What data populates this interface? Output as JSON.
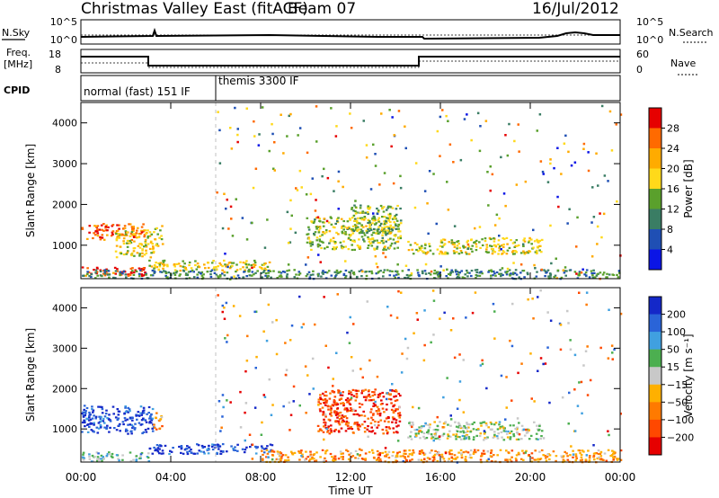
{
  "header": {
    "title": "Christmas Valley East (fitACF)",
    "beam": "Beam 07",
    "date": "16/Jul/2012"
  },
  "nsky_panel": {
    "left_label": "N.Sky",
    "right_label": "N.Search",
    "left_ticks": [
      "10^5",
      "10^0"
    ],
    "right_ticks": [
      "10^5",
      "10^0"
    ]
  },
  "freq_panel": {
    "left_label_line1": "Freq.",
    "left_label_line2": "[MHz]",
    "right_label": "Nave",
    "left_ticks": [
      "18",
      "8"
    ],
    "right_ticks": [
      "60",
      "0"
    ]
  },
  "cpid_panel": {
    "label": "CPID",
    "modes": [
      "normal (fast) 151 IF",
      "themis 3300 IF"
    ]
  },
  "time_axis": {
    "label": "Time UT",
    "ticks": [
      "00:00",
      "04:00",
      "08:00",
      "12:00",
      "16:00",
      "20:00",
      "00:00"
    ]
  },
  "range_axis": {
    "label": "Slant Range [km]",
    "ticks": [
      "1000",
      "2000",
      "3000",
      "4000"
    ]
  },
  "chart_data": [
    {
      "type": "heatmap",
      "title": "",
      "xlabel": "Time UT",
      "ylabel": "Slant Range [km]",
      "x_range_hours": [
        0,
        24
      ],
      "ylim": [
        180,
        4500
      ],
      "colorbar": {
        "label": "Power [dB]",
        "ticks": [
          "28",
          "24",
          "20",
          "16",
          "12",
          "8",
          "4"
        ],
        "colors": [
          "#e60000",
          "#ff6a00",
          "#ffab00",
          "#ffd91a",
          "#5aa02c",
          "#3a7d64",
          "#1f4fb4",
          "#0b15e6"
        ]
      },
      "regions": [
        {
          "t": [
            0.0,
            2.8
          ],
          "r": [
            1150,
            1550
          ],
          "level": 0.85
        },
        {
          "t": [
            1.5,
            3.2
          ],
          "r": [
            700,
            1400
          ],
          "level": 0.6
        },
        {
          "t": [
            3.2,
            3.6
          ],
          "r": [
            1000,
            1500
          ],
          "level": 0.55
        },
        {
          "t": [
            0.0,
            3.0
          ],
          "r": [
            250,
            480
          ],
          "level": 0.95
        },
        {
          "t": [
            3.0,
            8.5
          ],
          "r": [
            400,
            650
          ],
          "level": 0.6
        },
        {
          "t": [
            10.0,
            14.2
          ],
          "r": [
            900,
            1700
          ],
          "level": 0.5
        },
        {
          "t": [
            12.0,
            14.2
          ],
          "r": [
            1300,
            2000
          ],
          "level": 0.45
        },
        {
          "t": [
            14.5,
            20.5
          ],
          "r": [
            800,
            1200
          ],
          "level": 0.55
        },
        {
          "t": [
            0.0,
            24.0
          ],
          "r": [
            200,
            420
          ],
          "level": 0.3
        }
      ]
    },
    {
      "type": "heatmap",
      "title": "",
      "xlabel": "Time UT",
      "ylabel": "Slant Range [km]",
      "x_range_hours": [
        0,
        24
      ],
      "ylim": [
        180,
        4500
      ],
      "colorbar": {
        "label": "Velocity [m s⁻¹]",
        "ticks": [
          "200",
          "100",
          "50",
          "15",
          "−15",
          "−50",
          "−100",
          "−200"
        ],
        "colors": [
          "#1428c8",
          "#2a64d8",
          "#40a0e0",
          "#4caf50",
          "#c8c8c8",
          "#ffb000",
          "#ff7a00",
          "#ff4800",
          "#e60000"
        ]
      },
      "regions": [
        {
          "t": [
            0.0,
            3.2
          ],
          "r": [
            900,
            1600
          ],
          "level": 0.05
        },
        {
          "t": [
            3.0,
            8.5
          ],
          "r": [
            400,
            650
          ],
          "level": 0.05
        },
        {
          "t": [
            3.2,
            3.6
          ],
          "r": [
            1000,
            1500
          ],
          "level": 0.65
        },
        {
          "t": [
            10.5,
            14.2
          ],
          "r": [
            900,
            2000
          ],
          "level": 0.9
        },
        {
          "t": [
            14.5,
            20.5
          ],
          "r": [
            750,
            1200
          ],
          "level": 0.45
        },
        {
          "t": [
            8.0,
            24.0
          ],
          "r": [
            200,
            500
          ],
          "level": 0.7
        },
        {
          "t": [
            0.0,
            3.0
          ],
          "r": [
            200,
            450
          ],
          "level": 0.35
        }
      ]
    }
  ]
}
